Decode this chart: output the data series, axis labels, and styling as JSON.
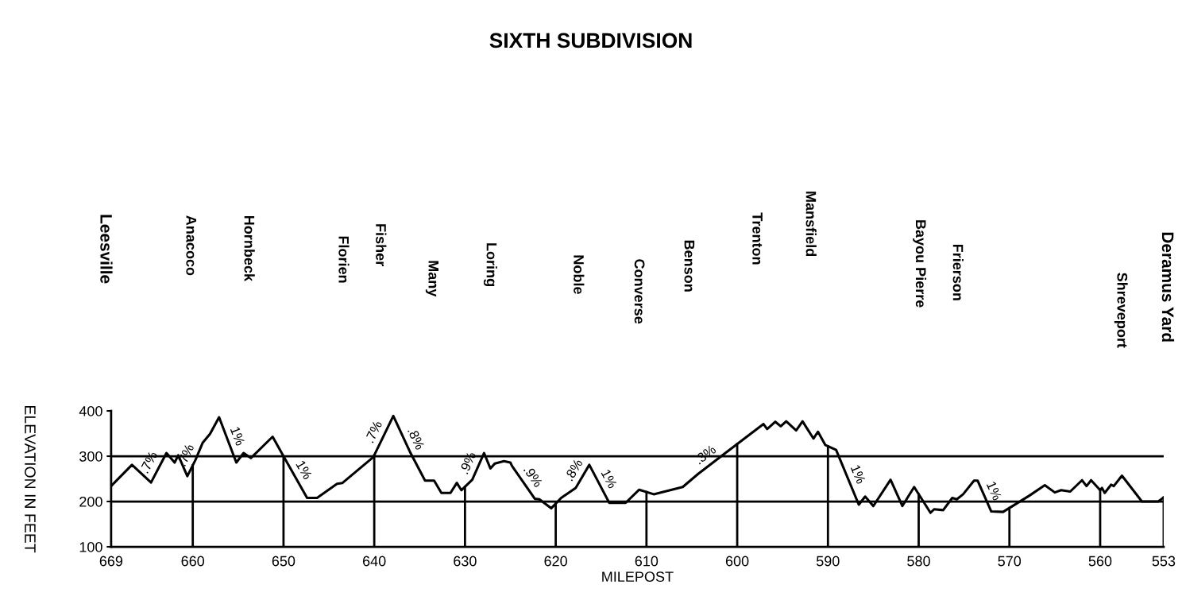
{
  "chart_data": {
    "type": "line",
    "title": "SIXTH SUBDIVISION",
    "xlabel": "MILEPOST",
    "ylabel": "ELEVATION IN FEET",
    "x": [
      669.0,
      666.7,
      664.6,
      662.9,
      662.0,
      661.6,
      660.6,
      659.7,
      658.9,
      658.1,
      657.1,
      655.2,
      654.4,
      653.6,
      651.2,
      650.2,
      647.4,
      646.3,
      644.1,
      643.5,
      640.1,
      637.9,
      636.0,
      634.4,
      633.4,
      632.6,
      631.6,
      630.9,
      630.4,
      629.2,
      627.9,
      627.2,
      626.7,
      625.7,
      625.0,
      624.8,
      622.3,
      621.8,
      620.5,
      619.4,
      617.8,
      616.3,
      614.1,
      612.3,
      610.8,
      609.2,
      606.0,
      604.3,
      601.3,
      597.1,
      596.7,
      595.8,
      595.2,
      594.6,
      593.5,
      592.8,
      591.6,
      591.1,
      590.3,
      589.1,
      586.6,
      585.9,
      585.0,
      583.1,
      581.8,
      580.5,
      578.7,
      578.3,
      577.3,
      576.3,
      575.8,
      575.1,
      573.9,
      573.5,
      572.0,
      570.7,
      567.8,
      566.1,
      565.0,
      564.3,
      563.3,
      562.0,
      561.5,
      561.0,
      560.0,
      559.8,
      559.5,
      558.8,
      558.5,
      557.6,
      555.4,
      553.6,
      553.0
    ],
    "series": [
      {
        "color": "#000000",
        "values": [
          234,
          281,
          242,
          307,
          286,
          302,
          256,
          292,
          330,
          349,
          386,
          286,
          307,
          296,
          343,
          307,
          208,
          208,
          239,
          241,
          298,
          389,
          307,
          246,
          246,
          219,
          219,
          241,
          225,
          248,
          307,
          273,
          284,
          289,
          286,
          278,
          206,
          205,
          185,
          208,
          230,
          281,
          197,
          197,
          226,
          216,
          232,
          261,
          307,
          371,
          360,
          376,
          366,
          377,
          357,
          377,
          339,
          354,
          325,
          314,
          193,
          211,
          190,
          248,
          190,
          232,
          175,
          183,
          181,
          208,
          205,
          216,
          246,
          246,
          178,
          177,
          213,
          236,
          220,
          225,
          222,
          247,
          234,
          247,
          225,
          230,
          219,
          237,
          234,
          257,
          200,
          200,
          209
        ]
      }
    ],
    "xlim": [
      669,
      553
    ],
    "ylim": [
      100,
      400
    ],
    "xticks": [
      669,
      660,
      650,
      640,
      630,
      620,
      610,
      600,
      590,
      580,
      570,
      560,
      553
    ],
    "yticks": [
      100,
      200,
      300,
      400
    ],
    "grid": false,
    "legend": false,
    "ref_lines": [
      {
        "axis": "y",
        "value": 200,
        "label": null
      },
      {
        "axis": "y",
        "value": 300,
        "label": null
      },
      {
        "axis": "x",
        "value": 660,
        "label": null
      },
      {
        "axis": "x",
        "value": 650,
        "label": null
      },
      {
        "axis": "x",
        "value": 640,
        "label": null
      },
      {
        "axis": "x",
        "value": 630,
        "label": null
      },
      {
        "axis": "x",
        "value": 620,
        "label": null
      },
      {
        "axis": "x",
        "value": 610,
        "label": null
      },
      {
        "axis": "x",
        "value": 600,
        "label": null
      },
      {
        "axis": "x",
        "value": 590,
        "label": null
      },
      {
        "axis": "x",
        "value": 580,
        "label": null
      },
      {
        "axis": "x",
        "value": 570,
        "label": null
      },
      {
        "axis": "x",
        "value": 560,
        "label": null
      },
      {
        "axis": "x",
        "value": 553,
        "label": null
      }
    ],
    "annotations": [
      "Leesville",
      "Anacoco",
      "Hornbeck",
      "Florien",
      "Fisher",
      "Many",
      "Loring",
      "Noble",
      "Converse",
      "Benson",
      "Trenton",
      "Mansfield",
      "Bayou Pierre",
      "Frierson",
      "Shreveport",
      "Deramus Yard",
      {
        "text": ".7%",
        "x": 663.8,
        "y": 275
      },
      {
        "text": ".7%",
        "x": 659.7,
        "y": 292
      },
      {
        "text": "1%",
        "x": 656.2,
        "y": 336
      },
      {
        "text": "1%",
        "x": 648.8,
        "y": 258
      },
      {
        "text": ".7%",
        "x": 639.0,
        "y": 343
      },
      {
        "text": ".8%",
        "x": 636.5,
        "y": 329
      },
      {
        "text": ".9%",
        "x": 628.6,
        "y": 275
      },
      {
        "text": ".9%",
        "x": 623.5,
        "y": 242
      },
      {
        "text": ".8%",
        "x": 617.0,
        "y": 257
      },
      {
        "text": "1%",
        "x": 615.2,
        "y": 239
      },
      {
        "text": ".3%",
        "x": 602.8,
        "y": 284
      },
      {
        "text": "1%",
        "x": 587.8,
        "y": 251
      },
      {
        "text": "1%",
        "x": 572.8,
        "y": 214
      }
    ]
  }
}
